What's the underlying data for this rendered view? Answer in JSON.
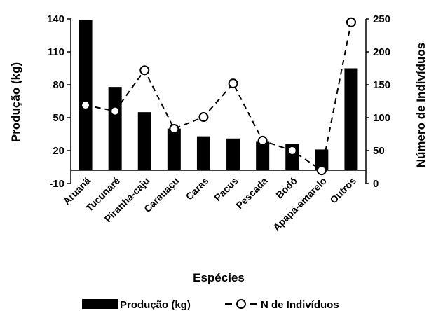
{
  "chart_data": {
    "type": "bar",
    "categories": [
      "Aruanã",
      "Tucunaré",
      "Piranha-caju",
      "Carauaçu",
      "Caras",
      "Pacus",
      "Pescada",
      "Bodó",
      "Apapá-amarelo",
      "Outros"
    ],
    "series": [
      {
        "name": "Produção (kg)",
        "type": "bar",
        "axis": "left",
        "values": [
          139,
          78,
          55,
          40,
          33,
          31,
          28,
          26,
          21,
          95
        ]
      },
      {
        "name": "N de Indivíduos",
        "type": "line",
        "axis": "right",
        "style": "dashed with open circle markers",
        "values": [
          119,
          110,
          172,
          83,
          101,
          152,
          65,
          50,
          20,
          245
        ]
      }
    ],
    "title": "",
    "xlabel": "Espécies",
    "ylabel": "Produção (kg)",
    "y2label": "Número de Indivíduos",
    "ylim": [
      -10,
      140
    ],
    "yticks": [
      -10,
      20,
      50,
      80,
      110,
      140
    ],
    "y2lim": [
      0,
      250
    ],
    "y2ticks": [
      0,
      50,
      100,
      150,
      200,
      250
    ],
    "grid": false,
    "legend": {
      "placement": "bottom",
      "bar_label": "Produção (kg)",
      "line_label": "N de Indivíduos"
    },
    "colors": {
      "bars": "#000000",
      "line": "#000000",
      "marker_fill": "#ffffff"
    }
  }
}
